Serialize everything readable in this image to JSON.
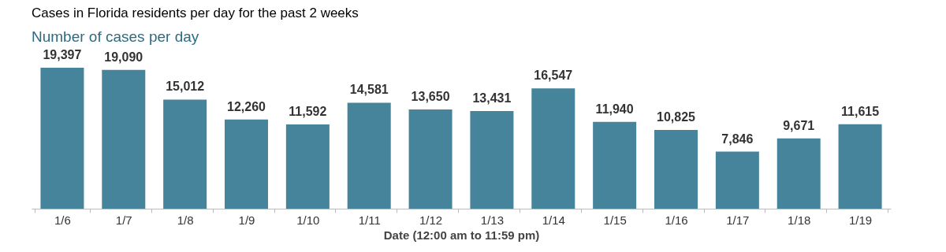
{
  "chart_data": {
    "type": "bar",
    "title": "Cases in Florida residents per day for the past 2 weeks",
    "subtitle": "Number of cases per day",
    "xlabel": "Date (12:00 am to 11:59 pm)",
    "categories": [
      "1/6",
      "1/7",
      "1/8",
      "1/9",
      "1/10",
      "1/11",
      "1/12",
      "1/13",
      "1/14",
      "1/15",
      "1/16",
      "1/17",
      "1/18",
      "1/19"
    ],
    "values": [
      19397,
      19090,
      15012,
      12260,
      11592,
      14581,
      13650,
      13431,
      16547,
      11940,
      10825,
      7846,
      9671,
      11615
    ],
    "value_labels": [
      "19,397",
      "19,090",
      "15,012",
      "12,260",
      "11,592",
      "14,581",
      "13,650",
      "13,431",
      "16,547",
      "11,940",
      "10,825",
      "7,846",
      "9,671",
      "11,615"
    ],
    "color": "#45849a",
    "grid": false
  }
}
